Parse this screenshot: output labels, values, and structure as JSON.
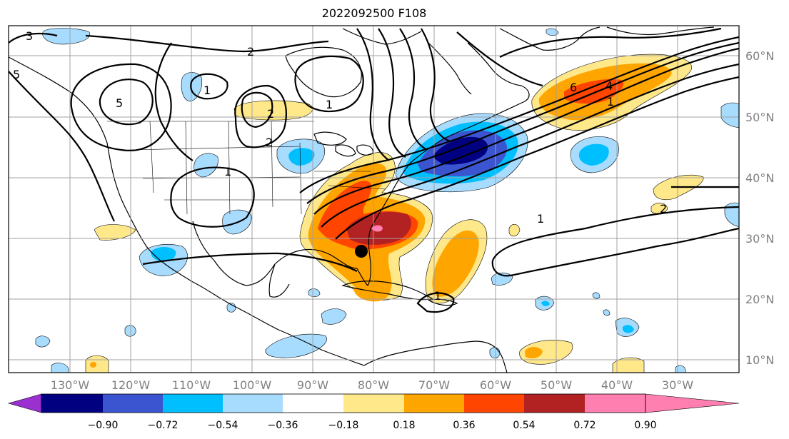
{
  "title": "2022092500 F108",
  "lon_labels": [
    "130°W",
    "120°W",
    "110°W",
    "100°W",
    "90°W",
    "80°W",
    "70°W",
    "60°W",
    "50°W",
    "40°W",
    "30°W"
  ],
  "lat_labels": [
    "60°N",
    "50°N",
    "40°N",
    "30°N",
    "20°N",
    "10°N"
  ],
  "colorbar": {
    "ticks": [
      "−0.90",
      "−0.72",
      "−0.54",
      "−0.36",
      "−0.18",
      "0.18",
      "0.36",
      "0.54",
      "0.72",
      "0.90"
    ],
    "colors": [
      "#9b30d0",
      "#000080",
      "#3b55d0",
      "#00bfff",
      "#a8dcff",
      "#ffffff",
      "#ffe88a",
      "#ffa500",
      "#ff4500",
      "#b22222",
      "#ff7fb0"
    ]
  },
  "contour_labels": [
    "3",
    "2",
    "5",
    "1",
    "5",
    "1",
    "2",
    "1",
    "2",
    "6",
    "4",
    "1",
    "1",
    "2",
    "1"
  ],
  "marker": "black-dot"
}
